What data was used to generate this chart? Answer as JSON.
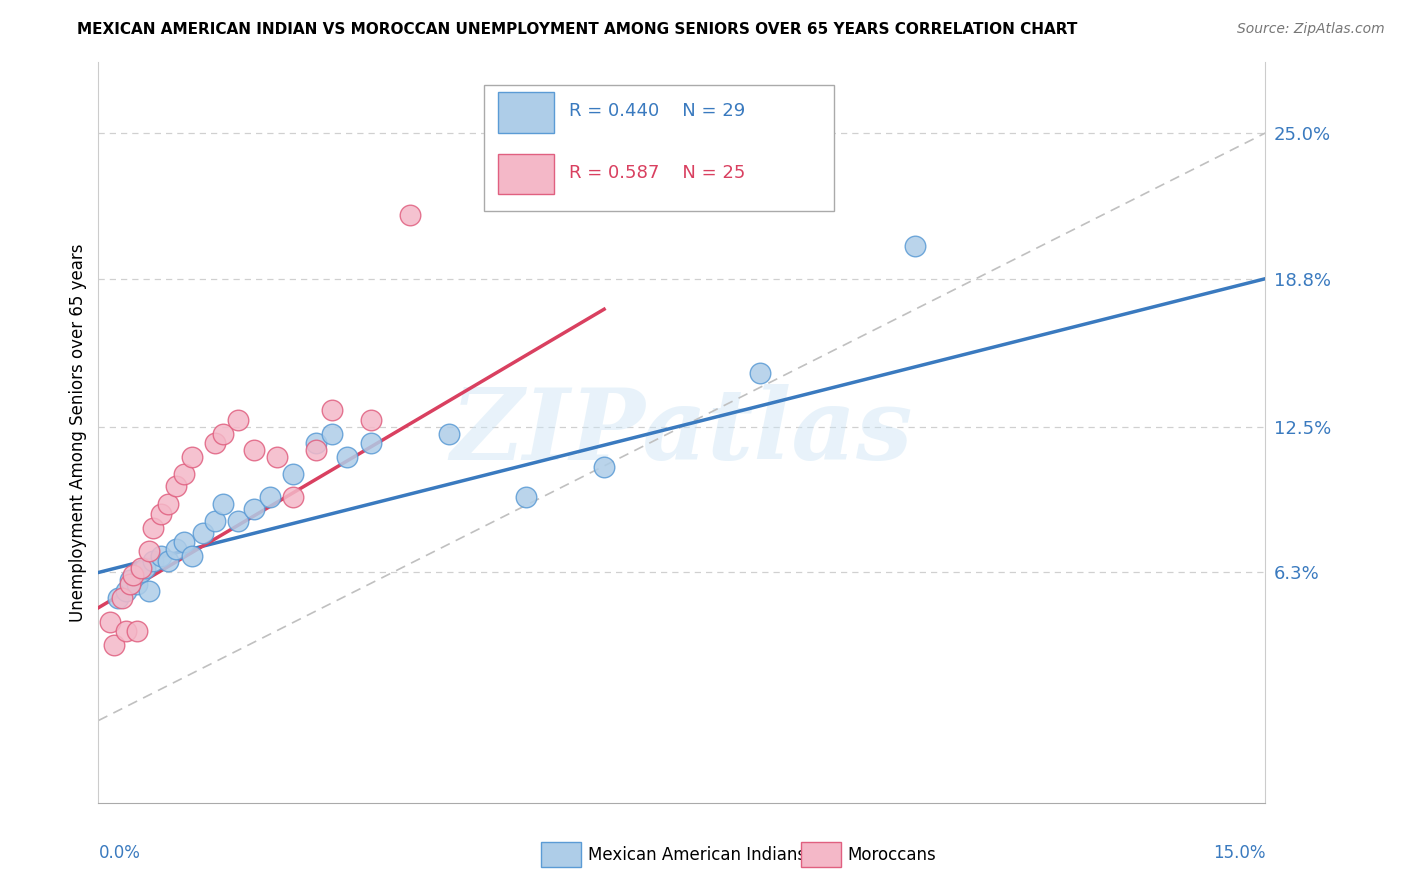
{
  "title": "MEXICAN AMERICAN INDIAN VS MOROCCAN UNEMPLOYMENT AMONG SENIORS OVER 65 YEARS CORRELATION CHART",
  "source": "Source: ZipAtlas.com",
  "ylabel": "Unemployment Among Seniors over 65 years",
  "xlim": [
    0.0,
    15.0
  ],
  "ylim": [
    -3.5,
    28.0
  ],
  "yticks": [
    6.3,
    12.5,
    18.8,
    25.0
  ],
  "ytick_labels": [
    "6.3%",
    "12.5%",
    "18.8%",
    "25.0%"
  ],
  "legend_blue_r": "R = 0.440",
  "legend_blue_n": "N = 29",
  "legend_pink_r": "R = 0.587",
  "legend_pink_n": "N = 25",
  "blue_fill": "#aecde8",
  "blue_edge": "#5b9bd5",
  "pink_fill": "#f4b8c8",
  "pink_edge": "#e06080",
  "reg_blue_color": "#3a7abf",
  "reg_pink_color": "#d94060",
  "diag_color": "#c0c0c0",
  "grid_color": "#d0d0d0",
  "blue_scatter_x": [
    0.25,
    0.35,
    0.4,
    0.5,
    0.55,
    0.6,
    0.65,
    0.7,
    0.8,
    0.9,
    1.0,
    1.1,
    1.2,
    1.35,
    1.5,
    1.6,
    1.8,
    2.0,
    2.2,
    2.5,
    2.8,
    3.0,
    3.2,
    3.5,
    4.5,
    5.5,
    6.5,
    8.5,
    10.5
  ],
  "blue_scatter_y": [
    5.2,
    5.5,
    6.0,
    5.8,
    6.3,
    6.5,
    5.5,
    6.8,
    7.0,
    6.8,
    7.3,
    7.6,
    7.0,
    8.0,
    8.5,
    9.2,
    8.5,
    9.0,
    9.5,
    10.5,
    11.8,
    12.2,
    11.2,
    11.8,
    12.2,
    9.5,
    10.8,
    14.8,
    20.2
  ],
  "pink_scatter_x": [
    0.15,
    0.2,
    0.3,
    0.35,
    0.4,
    0.45,
    0.5,
    0.55,
    0.65,
    0.7,
    0.8,
    0.9,
    1.0,
    1.1,
    1.2,
    1.5,
    1.6,
    1.8,
    2.0,
    2.3,
    2.5,
    2.8,
    3.0,
    3.5,
    4.0
  ],
  "pink_scatter_y": [
    4.2,
    3.2,
    5.2,
    3.8,
    5.8,
    6.2,
    3.8,
    6.5,
    7.2,
    8.2,
    8.8,
    9.2,
    10.0,
    10.5,
    11.2,
    11.8,
    12.2,
    12.8,
    11.5,
    11.2,
    9.5,
    11.5,
    13.2,
    12.8,
    21.5
  ],
  "blue_reg_x0": 0.0,
  "blue_reg_y0": 6.3,
  "blue_reg_x1": 15.0,
  "blue_reg_y1": 18.8,
  "pink_reg_x0": 0.0,
  "pink_reg_y0": 4.8,
  "pink_reg_x1": 6.5,
  "pink_reg_y1": 17.5,
  "diag_x0": 0.0,
  "diag_y0": 0.0,
  "diag_x1": 15.0,
  "diag_y1": 25.0,
  "watermark": "ZIPatlas",
  "bottom_label_blue": "Mexican American Indians",
  "bottom_label_pink": "Moroccans"
}
